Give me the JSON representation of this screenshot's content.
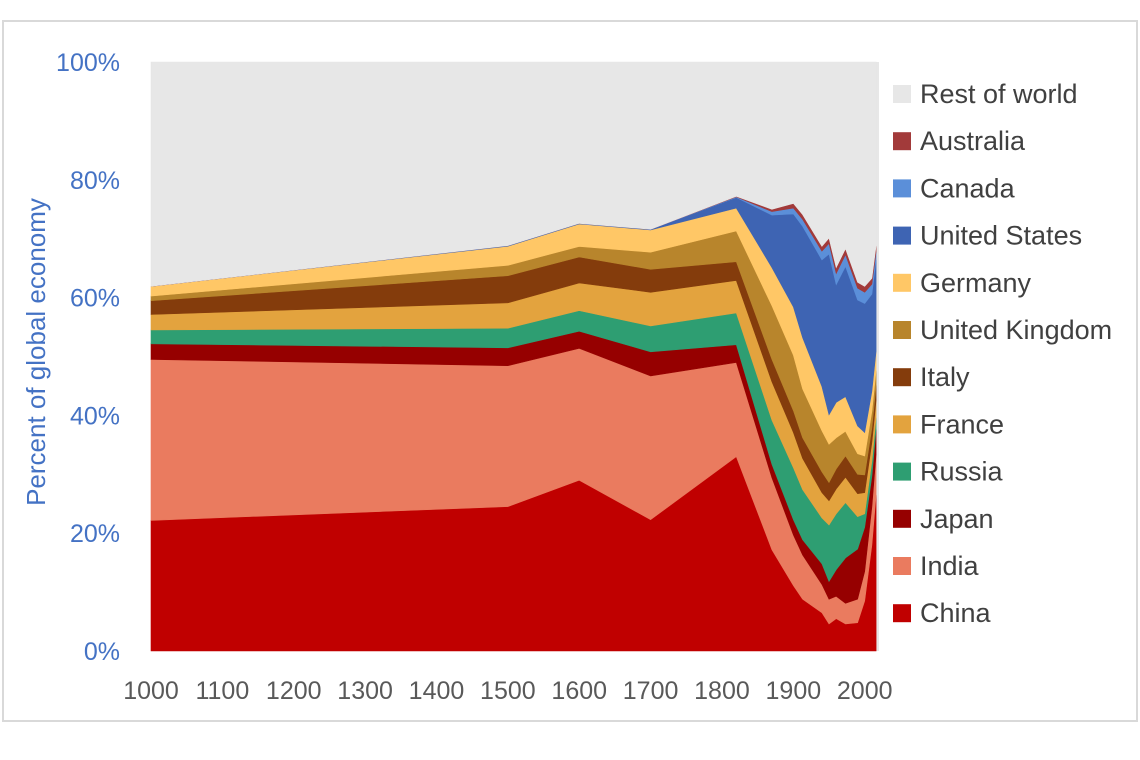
{
  "chart_data": {
    "type": "area",
    "stacked": true,
    "normalized_percent": true,
    "title": "",
    "xlabel": "",
    "ylabel": "Percent of global economy",
    "xlim": [
      1000,
      2020
    ],
    "ylim": [
      0,
      100
    ],
    "x_ticks": [
      1000,
      1100,
      1200,
      1300,
      1400,
      1500,
      1600,
      1700,
      1800,
      1900,
      2000
    ],
    "y_ticks": [
      {
        "value": 0,
        "label": "0%"
      },
      {
        "value": 20,
        "label": "20%"
      },
      {
        "value": 40,
        "label": "40%"
      },
      {
        "value": 60,
        "label": "60%"
      },
      {
        "value": 80,
        "label": "80%"
      },
      {
        "value": 100,
        "label": "100%"
      }
    ],
    "x": [
      1000,
      1500,
      1600,
      1700,
      1820,
      1870,
      1900,
      1913,
      1940,
      1950,
      1960,
      1973,
      1990,
      2000,
      2010,
      2016
    ],
    "series": [
      {
        "name": "China",
        "color": "#c00000",
        "values": [
          22.7,
          25.0,
          29.0,
          22.3,
          33.0,
          17.2,
          11.1,
          8.8,
          6.5,
          4.6,
          5.5,
          4.6,
          4.8,
          8.5,
          18.0,
          26.5
        ]
      },
      {
        "name": "India",
        "color": "#ea7b5f",
        "values": [
          28.0,
          24.4,
          22.4,
          24.4,
          16.0,
          12.2,
          8.6,
          7.5,
          4.8,
          4.2,
          3.8,
          3.5,
          4.0,
          5.0,
          6.5,
          6.9
        ]
      },
      {
        "name": "Japan",
        "color": "#960000",
        "values": [
          2.7,
          3.1,
          2.9,
          4.1,
          3.0,
          2.3,
          2.6,
          2.6,
          3.5,
          3.0,
          4.5,
          7.7,
          8.5,
          7.5,
          5.2,
          4.2
        ]
      },
      {
        "name": "Russia",
        "color": "#2e9e72",
        "values": [
          2.4,
          3.4,
          3.5,
          4.4,
          5.4,
          7.5,
          8.8,
          8.5,
          7.8,
          9.6,
          9.5,
          9.4,
          5.5,
          2.3,
          2.5,
          2.0
        ]
      },
      {
        "name": "France",
        "color": "#e3a33e",
        "values": [
          2.7,
          4.4,
          4.7,
          5.7,
          5.5,
          6.5,
          6.0,
          5.3,
          4.3,
          4.1,
          4.2,
          4.3,
          3.9,
          3.6,
          3.2,
          3.0
        ]
      },
      {
        "name": "Italy",
        "color": "#843c0c",
        "values": [
          2.4,
          4.7,
          4.4,
          3.9,
          3.2,
          3.8,
          3.7,
          3.5,
          3.5,
          3.1,
          3.4,
          3.6,
          3.3,
          3.0,
          2.5,
          2.5
        ]
      },
      {
        "name": "United Kingdom",
        "color": "#b8852c",
        "values": [
          0.8,
          1.8,
          1.8,
          2.9,
          5.2,
          9.1,
          9.4,
          8.3,
          7.0,
          6.5,
          5.3,
          4.2,
          3.5,
          3.2,
          2.8,
          2.5
        ]
      },
      {
        "name": "Germany",
        "color": "#ffc766",
        "values": [
          1.7,
          3.3,
          3.8,
          3.8,
          3.9,
          6.5,
          8.2,
          8.7,
          7.5,
          5.0,
          6.0,
          5.9,
          4.7,
          4.0,
          3.4,
          3.3
        ]
      },
      {
        "name": "United States",
        "color": "#3e64b3",
        "values": [
          0.0,
          0.1,
          0.1,
          0.1,
          1.8,
          8.9,
          15.8,
          18.9,
          21.5,
          27.3,
          20.0,
          22.1,
          21.4,
          21.9,
          16.5,
          15.5
        ]
      },
      {
        "name": "Canada",
        "color": "#5b8fd9",
        "values": [
          0.0,
          0.0,
          0.0,
          0.0,
          0.1,
          0.6,
          1.0,
          1.2,
          1.5,
          1.8,
          1.9,
          2.0,
          2.0,
          1.9,
          1.7,
          1.4
        ]
      },
      {
        "name": "Australia",
        "color": "#a23a3a",
        "values": [
          0.0,
          0.0,
          0.0,
          0.0,
          0.1,
          0.4,
          0.8,
          0.8,
          0.8,
          0.9,
          1.0,
          1.0,
          1.0,
          1.0,
          1.0,
          1.0
        ]
      },
      {
        "name": "Rest of world",
        "color": "#e7e7e7",
        "values": [
          39.0,
          31.8,
          27.4,
          28.4,
          22.8,
          25.0,
          24.0,
          25.9,
          31.3,
          29.9,
          34.9,
          31.7,
          37.4,
          38.1,
          36.7,
          31.2
        ]
      }
    ],
    "legend": {
      "placement": "right",
      "order": [
        "Rest of world",
        "Australia",
        "Canada",
        "United States",
        "Germany",
        "United Kingdom",
        "Italy",
        "France",
        "Russia",
        "Japan",
        "India",
        "China"
      ]
    },
    "grid": false
  }
}
